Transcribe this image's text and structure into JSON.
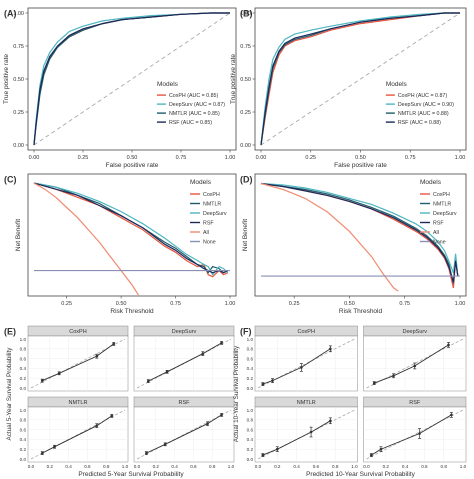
{
  "colors": {
    "CoxPH": "#e8543f",
    "DeepSurv": "#4db6c0",
    "NMTLR": "#1f5c6b",
    "RSF": "#1c2a5a",
    "All": "#f08a70",
    "None": "#8a8fb5",
    "diag": "#aaaaaa",
    "facet_header": "#d9d9d9"
  },
  "chart_data": [
    {
      "panel": "A",
      "label": "(A)",
      "type": "line",
      "xlabel": "False positive rate",
      "ylabel": "True positive rate",
      "xlim": [
        0,
        1
      ],
      "ylim": [
        0,
        1
      ],
      "xticks": [
        "0.00",
        "0.25",
        "0.50",
        "0.75",
        "1.00"
      ],
      "yticks": [
        "0.00",
        "0.25",
        "0.50",
        "0.75",
        "1.00"
      ],
      "legend_title": "Models",
      "legend_position": "bottom-right",
      "series": [
        {
          "name": "CoxPH (AUC = 0.85)",
          "key": "CoxPH",
          "x": [
            0,
            0.01,
            0.03,
            0.05,
            0.08,
            0.12,
            0.18,
            0.25,
            0.35,
            0.45,
            0.6,
            0.75,
            0.9,
            1
          ],
          "y": [
            0,
            0.15,
            0.4,
            0.55,
            0.66,
            0.74,
            0.82,
            0.87,
            0.92,
            0.95,
            0.97,
            0.99,
            1,
            1
          ]
        },
        {
          "name": "DeepSurv (AUC = 0.87)",
          "key": "DeepSurv",
          "x": [
            0,
            0.01,
            0.03,
            0.05,
            0.08,
            0.12,
            0.18,
            0.25,
            0.35,
            0.45,
            0.6,
            0.75,
            0.9,
            1
          ],
          "y": [
            0,
            0.18,
            0.45,
            0.6,
            0.7,
            0.78,
            0.86,
            0.9,
            0.94,
            0.96,
            0.98,
            0.99,
            1,
            1
          ]
        },
        {
          "name": "NMTLR (AUC = 0.85)",
          "key": "NMTLR",
          "x": [
            0,
            0.01,
            0.03,
            0.05,
            0.08,
            0.12,
            0.18,
            0.25,
            0.35,
            0.45,
            0.6,
            0.75,
            0.9,
            1
          ],
          "y": [
            0,
            0.14,
            0.38,
            0.53,
            0.65,
            0.74,
            0.82,
            0.87,
            0.92,
            0.95,
            0.97,
            0.99,
            1,
            1
          ]
        },
        {
          "name": "RSF (AUC = 0.85)",
          "key": "RSF",
          "x": [
            0,
            0.01,
            0.03,
            0.05,
            0.08,
            0.12,
            0.18,
            0.25,
            0.35,
            0.45,
            0.6,
            0.75,
            0.9,
            1
          ],
          "y": [
            0,
            0.16,
            0.42,
            0.56,
            0.67,
            0.75,
            0.83,
            0.88,
            0.92,
            0.95,
            0.97,
            0.99,
            1,
            1
          ]
        }
      ]
    },
    {
      "panel": "B",
      "label": "(B)",
      "type": "line",
      "xlabel": "False positive rate",
      "ylabel": "True positive rate",
      "xlim": [
        0,
        1
      ],
      "ylim": [
        0,
        1
      ],
      "xticks": [
        "0.00",
        "0.25",
        "0.50",
        "0.75",
        "1.00"
      ],
      "yticks": [
        "0.00",
        "0.25",
        "0.50",
        "0.75",
        "1.00"
      ],
      "legend_title": "Models",
      "legend_position": "bottom-right",
      "series": [
        {
          "name": "CoxPH (AUC = 0.87)",
          "key": "CoxPH",
          "x": [
            0,
            0.02,
            0.04,
            0.06,
            0.09,
            0.12,
            0.17,
            0.25,
            0.35,
            0.5,
            0.65,
            0.8,
            0.92,
            1
          ],
          "y": [
            0,
            0.2,
            0.38,
            0.55,
            0.68,
            0.75,
            0.79,
            0.82,
            0.87,
            0.92,
            0.95,
            0.98,
            1,
            1
          ]
        },
        {
          "name": "DeepSurv (AUC = 0.90)",
          "key": "DeepSurv",
          "x": [
            0,
            0.02,
            0.04,
            0.06,
            0.09,
            0.12,
            0.17,
            0.25,
            0.35,
            0.5,
            0.65,
            0.8,
            0.92,
            1
          ],
          "y": [
            0,
            0.28,
            0.5,
            0.65,
            0.74,
            0.8,
            0.84,
            0.87,
            0.9,
            0.94,
            0.97,
            0.99,
            1,
            1
          ]
        },
        {
          "name": "NMTLR (AUC = 0.88)",
          "key": "NMTLR",
          "x": [
            0,
            0.02,
            0.04,
            0.06,
            0.09,
            0.12,
            0.17,
            0.25,
            0.35,
            0.5,
            0.65,
            0.8,
            0.92,
            1
          ],
          "y": [
            0,
            0.22,
            0.42,
            0.58,
            0.7,
            0.76,
            0.8,
            0.83,
            0.88,
            0.93,
            0.96,
            0.98,
            1,
            1
          ]
        },
        {
          "name": "RSF (AUC = 0.88)",
          "key": "RSF",
          "x": [
            0,
            0.02,
            0.04,
            0.06,
            0.09,
            0.12,
            0.17,
            0.25,
            0.35,
            0.5,
            0.65,
            0.8,
            0.92,
            1
          ],
          "y": [
            0,
            0.24,
            0.44,
            0.6,
            0.71,
            0.77,
            0.81,
            0.84,
            0.88,
            0.93,
            0.96,
            0.98,
            1,
            1
          ]
        }
      ]
    },
    {
      "panel": "C",
      "label": "(C)",
      "type": "line",
      "xlabel": "Risk Threshold",
      "ylabel": "Net Benefit",
      "xlim": [
        0.1,
        1.0
      ],
      "ylim": [
        -0.1,
        0.45
      ],
      "xticks": [
        "0.25",
        "0.50",
        "0.75",
        "1.00"
      ],
      "legend_title": "Models",
      "legend_position": "right",
      "series": [
        {
          "name": "CoxPH",
          "key": "CoxPH",
          "x": [
            0.1,
            0.2,
            0.3,
            0.4,
            0.5,
            0.6,
            0.7,
            0.75,
            0.8,
            0.85,
            0.88,
            0.9,
            0.92,
            0.95,
            0.97,
            0.99
          ],
          "y": [
            0.43,
            0.4,
            0.36,
            0.32,
            0.26,
            0.2,
            0.12,
            0.09,
            0.05,
            0.02,
            0.03,
            -0.02,
            -0.03,
            0.0,
            -0.02,
            -0.01
          ]
        },
        {
          "name": "NMTLR",
          "key": "NMTLR",
          "x": [
            0.1,
            0.2,
            0.3,
            0.4,
            0.5,
            0.6,
            0.7,
            0.75,
            0.8,
            0.85,
            0.88,
            0.9,
            0.92,
            0.95,
            0.97,
            0.99
          ],
          "y": [
            0.43,
            0.41,
            0.37,
            0.33,
            0.27,
            0.21,
            0.14,
            0.11,
            0.07,
            0.03,
            0.02,
            -0.01,
            0.02,
            0.01,
            -0.01,
            0.0
          ]
        },
        {
          "name": "DeepSurv",
          "key": "DeepSurv",
          "x": [
            0.1,
            0.2,
            0.3,
            0.4,
            0.5,
            0.6,
            0.7,
            0.75,
            0.8,
            0.85,
            0.88,
            0.9,
            0.92,
            0.95,
            0.97,
            0.99
          ],
          "y": [
            0.43,
            0.41,
            0.38,
            0.34,
            0.29,
            0.23,
            0.16,
            0.12,
            0.08,
            0.05,
            0.03,
            0.02,
            -0.02,
            0.02,
            0.01,
            -0.01
          ]
        },
        {
          "name": "RSF",
          "key": "RSF",
          "x": [
            0.1,
            0.2,
            0.3,
            0.4,
            0.5,
            0.6,
            0.7,
            0.75,
            0.8,
            0.85,
            0.88,
            0.9,
            0.92,
            0.95,
            0.97,
            0.99
          ],
          "y": [
            0.43,
            0.4,
            0.37,
            0.32,
            0.27,
            0.21,
            0.13,
            0.1,
            0.06,
            0.03,
            0.01,
            0.0,
            -0.01,
            0.0,
            -0.01,
            0.0
          ]
        },
        {
          "name": "All",
          "key": "All",
          "x": [
            0.1,
            0.15,
            0.2,
            0.25,
            0.3,
            0.35,
            0.4,
            0.45,
            0.5,
            0.55,
            0.58
          ],
          "y": [
            0.43,
            0.4,
            0.36,
            0.31,
            0.26,
            0.2,
            0.14,
            0.07,
            0.0,
            -0.07,
            -0.12
          ]
        },
        {
          "name": "None",
          "key": "None",
          "x": [
            0.1,
            1.0
          ],
          "y": [
            0,
            0
          ]
        }
      ]
    },
    {
      "panel": "D",
      "label": "(D)",
      "type": "line",
      "xlabel": "Risk Threshold",
      "ylabel": "Net Benefit",
      "xlim": [
        0.1,
        1.0
      ],
      "ylim": [
        -0.1,
        0.65
      ],
      "xticks": [
        "0.25",
        "0.50",
        "0.75",
        "1.00"
      ],
      "legend_title": "Models",
      "legend_position": "right",
      "series": [
        {
          "name": "CoxPH",
          "key": "CoxPH",
          "x": [
            0.1,
            0.2,
            0.3,
            0.4,
            0.5,
            0.6,
            0.7,
            0.8,
            0.85,
            0.9,
            0.93,
            0.95,
            0.97,
            0.98,
            0.99
          ],
          "y": [
            0.62,
            0.6,
            0.57,
            0.54,
            0.5,
            0.45,
            0.38,
            0.3,
            0.25,
            0.18,
            0.12,
            0.05,
            -0.08,
            0.1,
            0.0
          ]
        },
        {
          "name": "NMTLR",
          "key": "NMTLR",
          "x": [
            0.1,
            0.2,
            0.3,
            0.4,
            0.5,
            0.6,
            0.7,
            0.8,
            0.85,
            0.9,
            0.93,
            0.95,
            0.97,
            0.98,
            0.99
          ],
          "y": [
            0.62,
            0.6,
            0.58,
            0.55,
            0.51,
            0.46,
            0.4,
            0.32,
            0.27,
            0.2,
            0.14,
            0.08,
            -0.05,
            0.12,
            0.0
          ]
        },
        {
          "name": "DeepSurv",
          "key": "DeepSurv",
          "x": [
            0.1,
            0.2,
            0.3,
            0.4,
            0.5,
            0.6,
            0.7,
            0.8,
            0.85,
            0.9,
            0.93,
            0.95,
            0.97,
            0.98,
            0.99
          ],
          "y": [
            0.62,
            0.61,
            0.59,
            0.56,
            0.52,
            0.48,
            0.42,
            0.35,
            0.3,
            0.23,
            0.17,
            0.1,
            0.02,
            0.15,
            0.0
          ]
        },
        {
          "name": "RSF",
          "key": "RSF",
          "x": [
            0.1,
            0.2,
            0.3,
            0.4,
            0.5,
            0.6,
            0.7,
            0.8,
            0.85,
            0.9,
            0.93,
            0.95,
            0.97,
            0.98,
            0.99
          ],
          "y": [
            0.62,
            0.6,
            0.57,
            0.54,
            0.5,
            0.45,
            0.39,
            0.31,
            0.26,
            0.19,
            0.13,
            0.06,
            -0.04,
            0.1,
            0.0
          ]
        },
        {
          "name": "All",
          "key": "All",
          "x": [
            0.1,
            0.2,
            0.3,
            0.4,
            0.5,
            0.6,
            0.65,
            0.7,
            0.72
          ],
          "y": [
            0.62,
            0.58,
            0.52,
            0.43,
            0.3,
            0.13,
            0.02,
            -0.08,
            -0.1
          ]
        },
        {
          "name": "None",
          "key": "None",
          "x": [
            0.1,
            1.0
          ],
          "y": [
            0,
            0
          ]
        }
      ]
    },
    {
      "panel": "E",
      "label": "(E)",
      "type": "scatter",
      "xlabel": "Predicted 5-Year Survival Probability",
      "ylabel": "Actual 5-Year Survival Probability",
      "xlim": [
        0,
        1
      ],
      "ylim": [
        0,
        1
      ],
      "xticks": [
        "0.0",
        "0.2",
        "0.4",
        "0.6",
        "0.8",
        "1.0"
      ],
      "yticks": [
        "0.0",
        "0.2",
        "0.4",
        "0.6",
        "0.8",
        "1.0"
      ],
      "facets": [
        {
          "title": "CoxPH",
          "x": [
            0.12,
            0.3,
            0.7,
            0.88
          ],
          "y": [
            0.15,
            0.3,
            0.65,
            0.9
          ],
          "err": [
            0.03,
            0.03,
            0.04,
            0.03
          ]
        },
        {
          "title": "DeepSurv",
          "x": [
            0.12,
            0.32,
            0.7,
            0.9
          ],
          "y": [
            0.14,
            0.33,
            0.7,
            0.92
          ],
          "err": [
            0.03,
            0.03,
            0.04,
            0.03
          ]
        },
        {
          "title": "NMTLR",
          "x": [
            0.12,
            0.25,
            0.7,
            0.86
          ],
          "y": [
            0.12,
            0.25,
            0.68,
            0.88
          ],
          "err": [
            0.03,
            0.03,
            0.04,
            0.03
          ]
        },
        {
          "title": "RSF",
          "x": [
            0.1,
            0.3,
            0.75,
            0.9
          ],
          "y": [
            0.12,
            0.3,
            0.72,
            0.9
          ],
          "err": [
            0.03,
            0.03,
            0.04,
            0.03
          ]
        }
      ]
    },
    {
      "panel": "F",
      "label": "(F)",
      "type": "scatter",
      "xlabel": "Predicted 10-Year Survival Probability",
      "ylabel": "Actual 10-Year Survival Probability",
      "xlim": [
        0,
        1
      ],
      "ylim": [
        0,
        1
      ],
      "xticks": [
        "0.0",
        "0.2",
        "0.4",
        "0.6",
        "0.8",
        "1.0"
      ],
      "yticks": [
        "0.0",
        "0.2",
        "0.4",
        "0.6",
        "0.8",
        "1.0"
      ],
      "facets": [
        {
          "title": "CoxPH",
          "x": [
            0.05,
            0.15,
            0.45,
            0.75
          ],
          "y": [
            0.08,
            0.15,
            0.42,
            0.8
          ],
          "err": [
            0.03,
            0.04,
            0.08,
            0.06
          ]
        },
        {
          "title": "DeepSurv",
          "x": [
            0.08,
            0.28,
            0.5,
            0.85
          ],
          "y": [
            0.1,
            0.25,
            0.45,
            0.88
          ],
          "err": [
            0.03,
            0.04,
            0.06,
            0.05
          ]
        },
        {
          "title": "NMTLR",
          "x": [
            0.05,
            0.2,
            0.55,
            0.75
          ],
          "y": [
            0.08,
            0.2,
            0.55,
            0.78
          ],
          "err": [
            0.03,
            0.05,
            0.1,
            0.06
          ]
        },
        {
          "title": "RSF",
          "x": [
            0.05,
            0.15,
            0.55,
            0.88
          ],
          "y": [
            0.08,
            0.2,
            0.52,
            0.9
          ],
          "err": [
            0.03,
            0.05,
            0.1,
            0.05
          ]
        }
      ]
    }
  ]
}
